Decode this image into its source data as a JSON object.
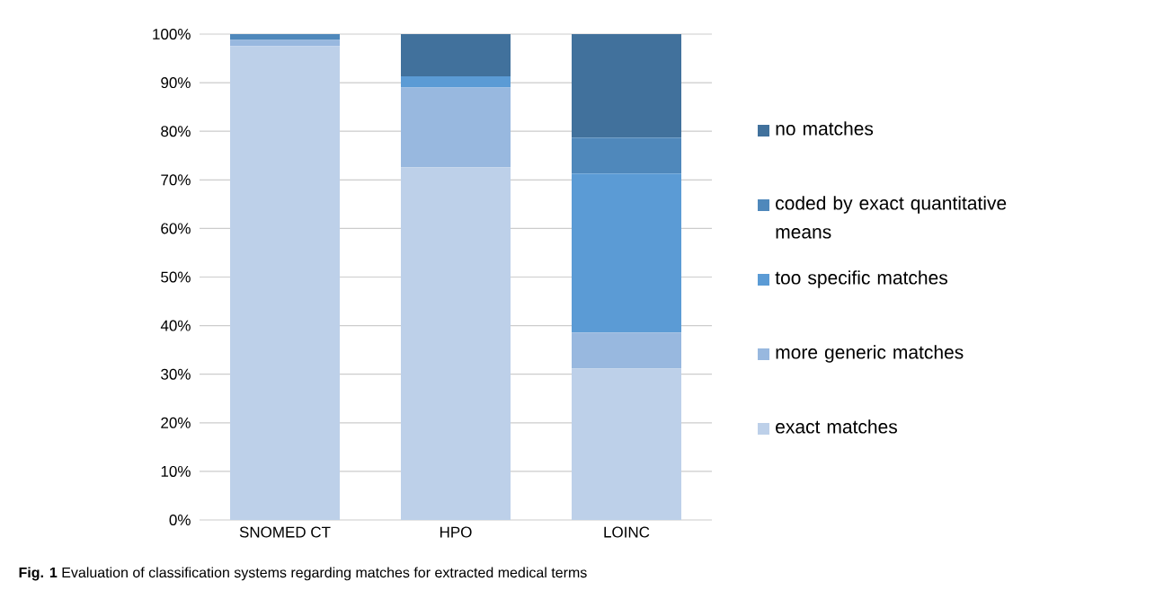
{
  "chart_data": {
    "type": "bar",
    "stacked": true,
    "title": "**Fig. 1**  Evaluation of classification systems regarding matches for extracted medical terms",
    "categories": [
      "SNOMED CT",
      "HPO",
      "LOINC"
    ],
    "series": [
      {
        "name": "exact matches",
        "color": "#bdd0e9",
        "values": [
          97.5,
          72.6,
          31.2
        ]
      },
      {
        "name": "more generic matches",
        "color": "#98b8df",
        "values": [
          1.3,
          16.4,
          7.4
        ]
      },
      {
        "name": "too specific matches",
        "color": "#5b9bd5",
        "values": [
          0,
          2.3,
          32.7
        ]
      },
      {
        "name": "coded by exact quantitative means",
        "color": "#4f88bb",
        "values": [
          1.2,
          0,
          7.4
        ]
      },
      {
        "name": "no matches",
        "color": "#41719c",
        "values": [
          0,
          8.7,
          21.3
        ]
      }
    ],
    "ylim": [
      0,
      100
    ],
    "yticks": [
      {
        "value": 0,
        "label": "0%"
      },
      {
        "value": 10,
        "label": "10%"
      },
      {
        "value": 20,
        "label": "20%"
      },
      {
        "value": 30,
        "label": "30%"
      },
      {
        "value": 40,
        "label": "40%"
      },
      {
        "value": 50,
        "label": "50%"
      },
      {
        "value": 60,
        "label": "60%"
      },
      {
        "value": 70,
        "label": "70%"
      },
      {
        "value": 80,
        "label": "80%"
      },
      {
        "value": 90,
        "label": "90%"
      },
      {
        "value": 100,
        "label": "100%"
      }
    ],
    "grid": "y",
    "legend": "right"
  }
}
